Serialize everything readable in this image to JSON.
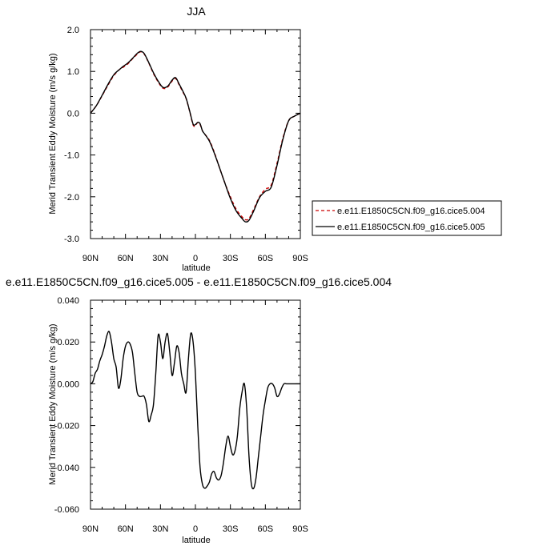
{
  "chart_data": [
    {
      "type": "line",
      "title": "JJA",
      "xlabel": "latitude",
      "ylabel": "Merid Transient Eddy Moisture (m/s g/kg)",
      "x_range": [
        90,
        -90
      ],
      "ylim": [
        -3.0,
        2.0
      ],
      "x_ticks": [
        90,
        60,
        30,
        0,
        -30,
        -60,
        -90
      ],
      "x_tick_labels": [
        "90N",
        "60N",
        "30N",
        "0",
        "30S",
        "60S",
        "90S"
      ],
      "y_ticks": [
        2.0,
        1.0,
        0.0,
        -1.0,
        -2.0,
        -3.0
      ],
      "y_tick_labels": [
        "2.0",
        "1.0",
        "0.0",
        "-1.0",
        "-2.0",
        "-3.0"
      ],
      "grid": false,
      "legend_position": "right-bottom",
      "series": [
        {
          "name": "e.e11.E1850C5CN.f09_g16.cice5.004",
          "color": "#cc0000",
          "dash": "dashed",
          "x": [
            90,
            85,
            80,
            75,
            70,
            65,
            62,
            58,
            54,
            50,
            47,
            44,
            40,
            36,
            32,
            28,
            24,
            20,
            17,
            14,
            11,
            8,
            5,
            2,
            0,
            -2,
            -4,
            -6,
            -8,
            -12,
            -16,
            -20,
            -25,
            -30,
            -35,
            -40,
            -43,
            -46,
            -50,
            -55,
            -60,
            -65,
            -70,
            -75,
            -80,
            -85,
            -90
          ],
          "y": [
            0.0,
            0.18,
            0.42,
            0.67,
            0.9,
            1.05,
            1.1,
            1.18,
            1.3,
            1.41,
            1.47,
            1.42,
            1.2,
            0.95,
            0.75,
            0.6,
            0.62,
            0.77,
            0.83,
            0.68,
            0.52,
            0.35,
            0.05,
            -0.28,
            -0.3,
            -0.22,
            -0.27,
            -0.42,
            -0.5,
            -0.65,
            -0.92,
            -1.25,
            -1.65,
            -2.0,
            -2.3,
            -2.48,
            -2.55,
            -2.52,
            -2.3,
            -2.0,
            -1.82,
            -1.72,
            -1.2,
            -0.6,
            -0.18,
            -0.07,
            0.0
          ]
        },
        {
          "name": "e.e11.E1850C5CN.f09_g16.cice5.005",
          "color": "#000000",
          "dash": "solid",
          "x": [
            90,
            85,
            80,
            75,
            70,
            65,
            62,
            58,
            54,
            50,
            47,
            44,
            40,
            36,
            32,
            28,
            24,
            20,
            17,
            14,
            11,
            8,
            5,
            2,
            0,
            -2,
            -4,
            -6,
            -8,
            -12,
            -16,
            -20,
            -25,
            -30,
            -35,
            -40,
            -43,
            -46,
            -50,
            -55,
            -60,
            -65,
            -70,
            -75,
            -80,
            -85,
            -90
          ],
          "y": [
            0.0,
            0.18,
            0.43,
            0.69,
            0.92,
            1.05,
            1.12,
            1.2,
            1.31,
            1.43,
            1.48,
            1.43,
            1.21,
            0.97,
            0.77,
            0.62,
            0.64,
            0.79,
            0.85,
            0.7,
            0.54,
            0.36,
            0.06,
            -0.26,
            -0.27,
            -0.22,
            -0.25,
            -0.42,
            -0.5,
            -0.67,
            -0.94,
            -1.25,
            -1.65,
            -2.04,
            -2.34,
            -2.52,
            -2.6,
            -2.56,
            -2.34,
            -2.02,
            -1.87,
            -1.77,
            -1.25,
            -0.63,
            -0.18,
            -0.07,
            0.0
          ]
        }
      ]
    },
    {
      "type": "line",
      "title": "e.e11.E1850C5CN.f09_g16.cice5.005 - e.e11.E1850C5CN.f09_g16.cice5.004",
      "xlabel": "latitude",
      "ylabel": "Merid Transient Eddy Moisture (m/s g/kg)",
      "x_range": [
        90,
        -90
      ],
      "ylim": [
        -0.06,
        0.04
      ],
      "x_ticks": [
        90,
        60,
        30,
        0,
        -30,
        -60,
        -90
      ],
      "x_tick_labels": [
        "90N",
        "60N",
        "30N",
        "0",
        "30S",
        "60S",
        "90S"
      ],
      "y_ticks": [
        0.04,
        0.02,
        0.0,
        -0.02,
        -0.04,
        -0.06
      ],
      "y_tick_labels": [
        "0.040",
        "0.020",
        "0.000",
        "-0.020",
        "-0.040",
        "-0.060"
      ],
      "grid": false,
      "series": [
        {
          "color": "#000000",
          "dash": "solid",
          "x": [
            90,
            88,
            86,
            84,
            82,
            80,
            78,
            76,
            74,
            72,
            70,
            68,
            66,
            64,
            62,
            60,
            58,
            56,
            54,
            52,
            50,
            48,
            46,
            44,
            42,
            40,
            38,
            36,
            34,
            32,
            30,
            28,
            26,
            24,
            22,
            20,
            18,
            16,
            14,
            12,
            10,
            8,
            6,
            4,
            2,
            0,
            -2,
            -4,
            -6,
            -8,
            -10,
            -12,
            -14,
            -16,
            -18,
            -20,
            -22,
            -24,
            -26,
            -28,
            -30,
            -32,
            -34,
            -36,
            -38,
            -40,
            -42,
            -44,
            -46,
            -48,
            -50,
            -52,
            -54,
            -56,
            -58,
            -60,
            -62,
            -64,
            -66,
            -68,
            -70,
            -72,
            -74,
            -76,
            -78,
            -80,
            -82,
            -84,
            -86,
            -88,
            -90
          ],
          "y": [
            0.0,
            0.001,
            0.005,
            0.007,
            0.011,
            0.014,
            0.018,
            0.023,
            0.025,
            0.02,
            0.012,
            0.008,
            -0.002,
            0.002,
            0.012,
            0.018,
            0.02,
            0.019,
            0.015,
            0.005,
            -0.004,
            -0.006,
            -0.006,
            -0.006,
            -0.01,
            -0.018,
            -0.015,
            -0.01,
            0.005,
            0.023,
            0.02,
            0.012,
            0.02,
            0.024,
            0.015,
            0.004,
            0.01,
            0.018,
            0.015,
            0.005,
            0.0,
            -0.004,
            0.012,
            0.024,
            0.02,
            0.005,
            -0.02,
            -0.04,
            -0.048,
            -0.05,
            -0.049,
            -0.047,
            -0.043,
            -0.042,
            -0.045,
            -0.046,
            -0.044,
            -0.038,
            -0.03,
            -0.025,
            -0.03,
            -0.034,
            -0.032,
            -0.025,
            -0.012,
            -0.004,
            0.0,
            -0.012,
            -0.035,
            -0.048,
            -0.05,
            -0.045,
            -0.035,
            -0.025,
            -0.015,
            -0.008,
            -0.002,
            0.0,
            0.0,
            -0.002,
            -0.006,
            -0.005,
            -0.002,
            0.0,
            0.0,
            0.0,
            0.0,
            0.0,
            0.0,
            0.0,
            0.0
          ]
        }
      ]
    }
  ]
}
